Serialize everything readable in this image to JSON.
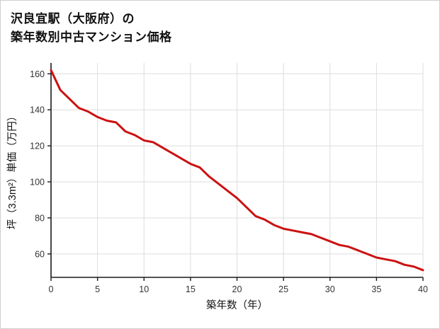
{
  "page": {
    "title_lines": [
      "沢良宜駅（大阪府）の",
      "築年数別中古マンション価格"
    ]
  },
  "chart_data": {
    "type": "line",
    "title": "沢良宜駅（大阪府）の築年数別中古マンション価格",
    "xlabel": "築年数（年）",
    "ylabel": "坪（3.3m²）単価（万円）",
    "x": [
      0,
      1,
      2,
      3,
      4,
      5,
      6,
      7,
      8,
      9,
      10,
      11,
      12,
      13,
      14,
      15,
      16,
      17,
      18,
      19,
      20,
      21,
      22,
      23,
      24,
      25,
      26,
      27,
      28,
      29,
      30,
      31,
      32,
      33,
      34,
      35,
      36,
      37,
      38,
      39,
      40
    ],
    "values": [
      162,
      151,
      146,
      141,
      139,
      136,
      134,
      133,
      128,
      126,
      123,
      122,
      119,
      116,
      113,
      110,
      108,
      103,
      99,
      95,
      91,
      86,
      81,
      79,
      76,
      74,
      73,
      72,
      71,
      69,
      67,
      65,
      64,
      62,
      60,
      58,
      57,
      56,
      54,
      53,
      51
    ],
    "xlim": [
      0,
      40
    ],
    "ylim": [
      47,
      166
    ],
    "xticks": [
      0,
      5,
      10,
      15,
      20,
      25,
      30,
      35,
      40
    ],
    "yticks": [
      60,
      80,
      100,
      120,
      140,
      160
    ],
    "grid": true,
    "legend": "none",
    "line_color": "#cc1111",
    "grid_color": "#dedede",
    "axis_color": "#1a1a1a",
    "tick_label_color": "#333333"
  }
}
